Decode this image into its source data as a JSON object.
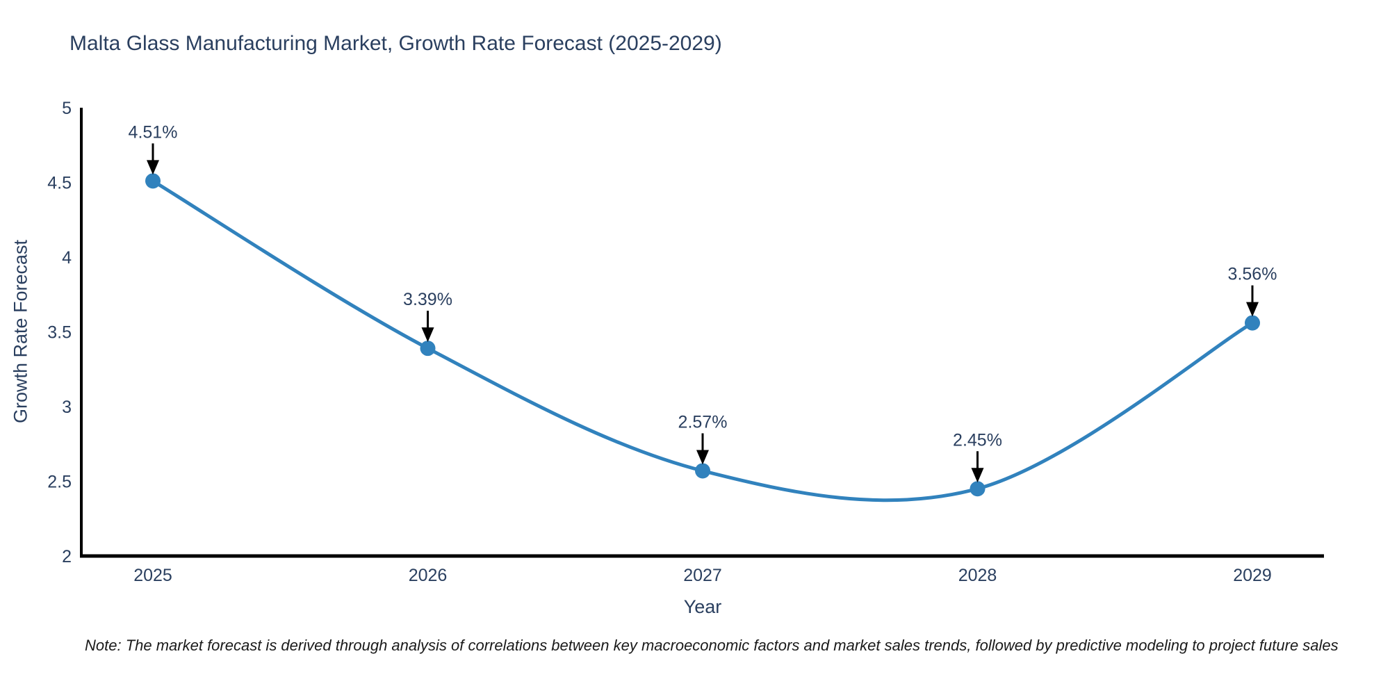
{
  "page": {
    "note": "Note: The market forecast is derived through analysis of correlations between key macroeconomic factors and market sales trends, followed by predictive modeling to project future sales"
  },
  "chart_data": {
    "type": "line",
    "title": "Malta Glass Manufacturing Market, Growth Rate Forecast (2025-2029)",
    "xlabel": "Year",
    "ylabel": "Growth Rate Forecast",
    "categories": [
      2025,
      2026,
      2027,
      2028,
      2029
    ],
    "values": [
      4.51,
      3.39,
      2.57,
      2.45,
      3.56
    ],
    "point_labels": [
      "4.51%",
      "3.39%",
      "2.57%",
      "2.45%",
      "3.56%"
    ],
    "ylim": [
      2,
      5
    ],
    "yticks": [
      2,
      2.5,
      3,
      3.5,
      4,
      4.5,
      5
    ],
    "line_shape": "spline",
    "grid": false,
    "legend": "none",
    "line_color": "#3182bd",
    "marker_color": "#3182bd",
    "axis_color": "#000000",
    "tick_color": "#2a3f5f",
    "annotation_text_color": "#2a3f5f",
    "annotation_arrow_color": "#000000"
  }
}
